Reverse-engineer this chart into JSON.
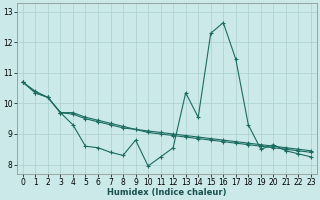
{
  "xlabel": "Humidex (Indice chaleur)",
  "background_color": "#cce9e9",
  "grid_color": "#aacfcf",
  "line_color": "#1a6b60",
  "x": [
    0,
    1,
    2,
    3,
    4,
    5,
    6,
    7,
    8,
    9,
    10,
    11,
    12,
    13,
    14,
    15,
    16,
    17,
    18,
    19,
    20,
    21,
    22,
    23
  ],
  "series1": [
    10.7,
    10.4,
    10.2,
    9.7,
    9.3,
    8.6,
    8.55,
    8.4,
    8.3,
    8.8,
    7.95,
    8.25,
    8.55,
    10.35,
    9.55,
    12.3,
    12.65,
    11.45,
    9.3,
    8.5,
    8.65,
    8.45,
    8.35,
    8.25
  ],
  "series2": [
    10.7,
    10.35,
    10.2,
    9.7,
    9.7,
    9.55,
    9.45,
    9.35,
    9.25,
    9.15,
    9.1,
    9.05,
    9.0,
    8.95,
    8.9,
    8.85,
    8.8,
    8.75,
    8.7,
    8.65,
    8.6,
    8.55,
    8.5,
    8.45
  ],
  "series3": [
    10.7,
    10.35,
    10.2,
    9.7,
    9.65,
    9.5,
    9.4,
    9.3,
    9.2,
    9.15,
    9.05,
    9.0,
    8.95,
    8.9,
    8.85,
    8.8,
    8.75,
    8.7,
    8.65,
    8.6,
    8.55,
    8.5,
    8.45,
    8.4
  ],
  "ylim": [
    7.7,
    13.3
  ],
  "yticks": [
    8,
    9,
    10,
    11,
    12,
    13
  ],
  "xticks": [
    0,
    1,
    2,
    3,
    4,
    5,
    6,
    7,
    8,
    9,
    10,
    11,
    12,
    13,
    14,
    15,
    16,
    17,
    18,
    19,
    20,
    21,
    22,
    23
  ],
  "xlabel_fontsize": 6.0,
  "tick_fontsize": 5.5
}
